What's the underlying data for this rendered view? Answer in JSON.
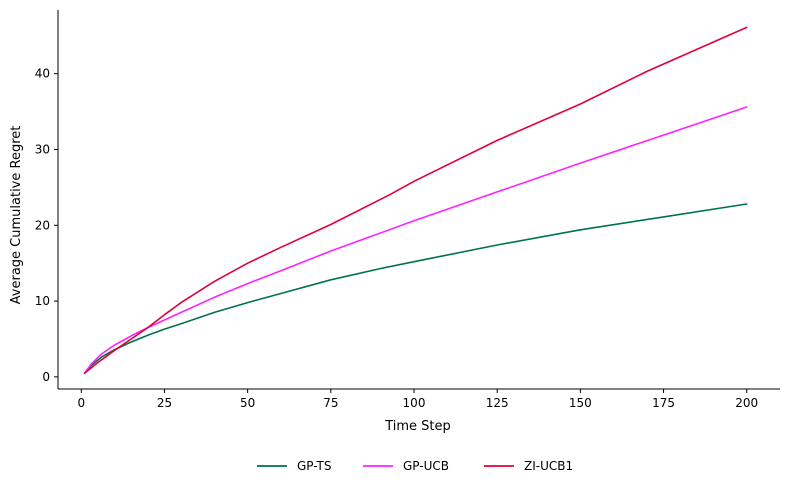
{
  "chart_data": {
    "type": "line",
    "title": "",
    "xlabel": "Time Step",
    "ylabel": "Average Cumulative Regret",
    "xlim": [
      -7,
      210
    ],
    "ylim": [
      -1.6,
      48.4
    ],
    "xticks": [
      0,
      25,
      50,
      75,
      100,
      125,
      150,
      175,
      200
    ],
    "yticks": [
      0,
      10,
      20,
      30,
      40
    ],
    "grid": false,
    "legend_position": "bottom-center",
    "series": [
      {
        "name": "GP-TS",
        "color": "#00734a",
        "x": [
          1,
          3,
          6,
          10,
          15,
          20,
          25,
          30,
          40,
          50,
          60,
          75,
          90,
          100,
          125,
          150,
          175,
          200
        ],
        "y": [
          0.5,
          1.5,
          2.6,
          3.6,
          4.6,
          5.5,
          6.3,
          7.0,
          8.5,
          9.8,
          11.0,
          12.8,
          14.3,
          15.2,
          17.4,
          19.4,
          21.1,
          22.8
        ]
      },
      {
        "name": "GP-UCB",
        "color": "#ff22ff",
        "x": [
          1,
          3,
          6,
          10,
          15,
          20,
          25,
          30,
          40,
          50,
          60,
          75,
          90,
          100,
          125,
          150,
          175,
          200
        ],
        "y": [
          0.5,
          1.7,
          3.0,
          4.2,
          5.4,
          6.5,
          7.5,
          8.5,
          10.5,
          12.3,
          14.0,
          16.6,
          19.0,
          20.6,
          24.4,
          28.2,
          31.9,
          35.6
        ]
      },
      {
        "name": "ZI-UCB1",
        "color": "#e0003c",
        "x": [
          1,
          5,
          10,
          15,
          20,
          25,
          30,
          40,
          50,
          60,
          75,
          93,
          100,
          125,
          150,
          170,
          185,
          200
        ],
        "y": [
          0.5,
          1.9,
          3.5,
          5.0,
          6.5,
          8.2,
          9.8,
          12.6,
          15.0,
          17.1,
          20.1,
          24.1,
          25.8,
          31.2,
          36.0,
          40.3,
          43.2,
          46.1
        ]
      }
    ]
  }
}
